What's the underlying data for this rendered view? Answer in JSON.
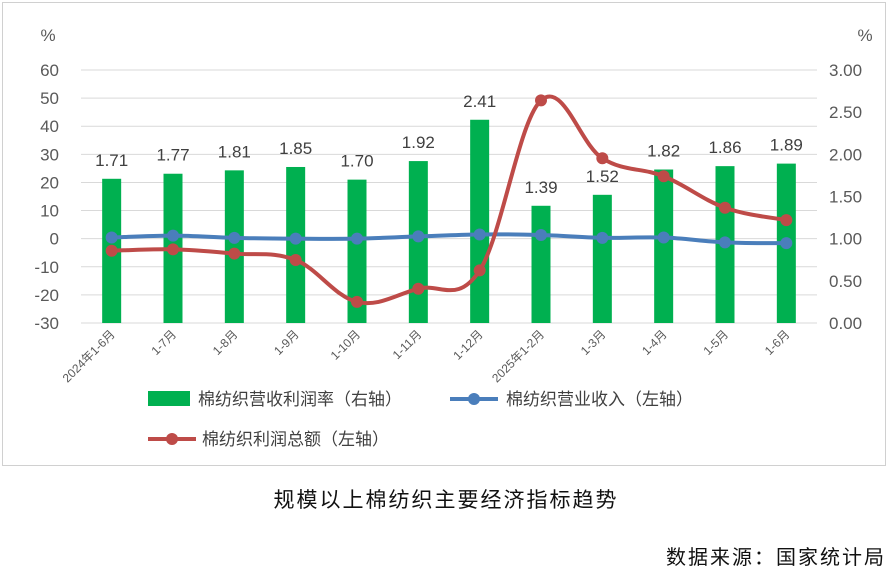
{
  "chart_data": {
    "type": "bar",
    "categories": [
      "2024年1-6月",
      "1-7月",
      "1-8月",
      "1-9月",
      "1-10月",
      "1-11月",
      "1-12月",
      "2025年1-2月",
      "1-3月",
      "1-4月",
      "1-5月",
      "1-6月"
    ],
    "left_axis": {
      "unit": "%",
      "min": -30,
      "max": 60,
      "step": 10,
      "ticks": [
        "60",
        "50",
        "40",
        "30",
        "20",
        "10",
        "0",
        "-10",
        "-20",
        "-30"
      ]
    },
    "right_axis": {
      "unit": "%",
      "min": 0,
      "max": 3,
      "step": 0.5,
      "ticks": [
        "3.00",
        "2.50",
        "2.00",
        "1.50",
        "1.00",
        "0.50",
        "0.00"
      ]
    },
    "series": [
      {
        "name": "棉纺织营收利润率（右轴）",
        "type": "bar",
        "axis": "right",
        "color": "#00b050",
        "values": [
          1.71,
          1.77,
          1.81,
          1.85,
          1.7,
          1.92,
          2.41,
          1.39,
          1.52,
          1.82,
          1.86,
          1.89
        ],
        "labels": [
          "1.71",
          "1.77",
          "1.81",
          "1.85",
          "1.70",
          "1.92",
          "2.41",
          "1.39",
          "1.52",
          "1.82",
          "1.86",
          "1.89"
        ]
      },
      {
        "name": "棉纺织营业收入（左轴）",
        "type": "line",
        "axis": "left",
        "color": "#4a7ebb",
        "values": [
          0.4,
          1.1,
          0.3,
          0.0,
          0.0,
          0.8,
          1.5,
          1.3,
          0.3,
          0.4,
          -1.3,
          -1.6
        ]
      },
      {
        "name": "棉纺织利润总额（左轴）",
        "type": "line",
        "axis": "left",
        "color": "#be4b48",
        "values": [
          -4.3,
          -3.8,
          -5.3,
          -7.6,
          -22.5,
          -17.8,
          -11.3,
          49.2,
          28.6,
          22.2,
          11.0,
          6.6
        ]
      }
    ],
    "legend_position": "bottom",
    "grid": true
  },
  "caption": "规模以上棉纺织主要经济指标趋势",
  "source": "数据来源：国家统计局"
}
